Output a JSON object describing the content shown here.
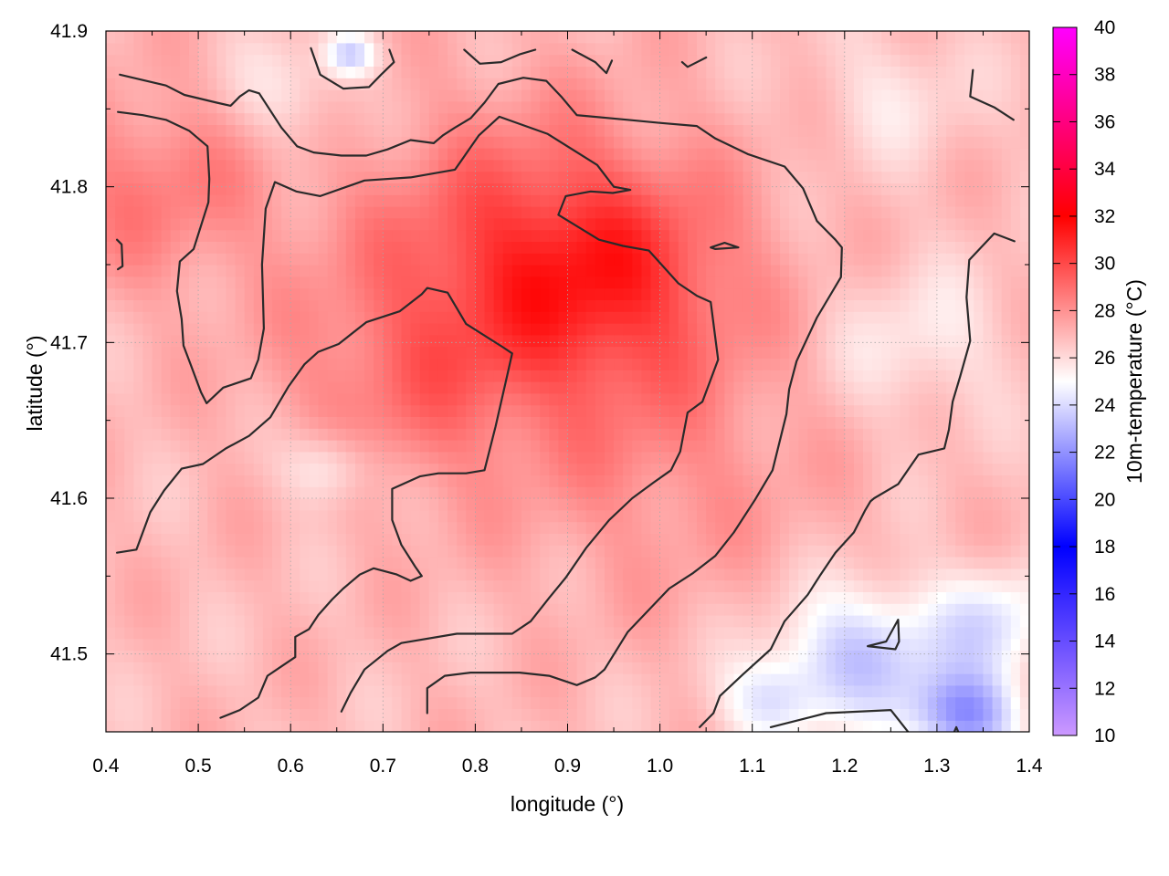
{
  "chart_data": {
    "type": "heatmap",
    "title": "",
    "xlabel": "longitude (°)",
    "ylabel": "latitude (°)",
    "xlim": [
      0.4,
      1.4
    ],
    "ylim": [
      41.45,
      41.9
    ],
    "x_ticks": [
      "0.4",
      "0.5",
      "0.6",
      "0.7",
      "0.8",
      "0.9",
      "1.0",
      "1.1",
      "1.2",
      "1.3",
      "1.4"
    ],
    "y_ticks": [
      "41.5",
      "41.6",
      "41.7",
      "41.8",
      "41.9"
    ],
    "grid": true,
    "colorbar": {
      "label": "10m-temperature (°C)",
      "range": [
        10,
        40
      ],
      "ticks": [
        "10",
        "12",
        "14",
        "16",
        "18",
        "20",
        "22",
        "24",
        "26",
        "28",
        "30",
        "32",
        "34",
        "36",
        "38",
        "40"
      ],
      "stops": [
        {
          "value": 10,
          "color": "#cc99ff"
        },
        {
          "value": 18,
          "color": "#0000ff"
        },
        {
          "value": 25,
          "color": "#ffffff"
        },
        {
          "value": 32,
          "color": "#ff0000"
        },
        {
          "value": 40,
          "color": "#ff00ff"
        }
      ]
    },
    "field_features": [
      {
        "lon": 0.85,
        "lat": 41.755,
        "temp": 29.6,
        "spread": 0.13
      },
      {
        "lon": 0.95,
        "lat": 41.74,
        "temp": 29.2,
        "spread": 0.1
      },
      {
        "lon": 0.72,
        "lat": 41.67,
        "temp": 28.3,
        "spread": 0.1
      },
      {
        "lon": 0.45,
        "lat": 41.8,
        "temp": 28.6,
        "spread": 0.09
      },
      {
        "lon": 1.0,
        "lat": 41.62,
        "temp": 28.0,
        "spread": 0.12
      },
      {
        "lon": 0.64,
        "lat": 41.62,
        "temp": 24.8,
        "spread": 0.035
      },
      {
        "lon": 0.6,
        "lat": 41.86,
        "temp": 25.6,
        "spread": 0.05
      },
      {
        "lon": 0.665,
        "lat": 41.885,
        "temp": 23.8,
        "spread": 0.02
      },
      {
        "lon": 1.22,
        "lat": 41.5,
        "temp": 23.4,
        "spread": 0.06
      },
      {
        "lon": 1.33,
        "lat": 41.46,
        "temp": 22.0,
        "spread": 0.04
      },
      {
        "lon": 1.36,
        "lat": 41.52,
        "temp": 24.4,
        "spread": 0.05
      },
      {
        "lon": 1.12,
        "lat": 41.47,
        "temp": 24.4,
        "spread": 0.04
      },
      {
        "lon": 1.28,
        "lat": 41.7,
        "temp": 25.6,
        "spread": 0.07
      },
      {
        "lon": 1.25,
        "lat": 41.86,
        "temp": 25.8,
        "spread": 0.06
      }
    ],
    "field_base_temp": 26.9,
    "contours": [
      [
        [
          0.415,
          41.872
        ],
        [
          0.465,
          41.865
        ],
        [
          0.485,
          41.859
        ],
        [
          0.52,
          41.854
        ],
        [
          0.535,
          41.852
        ],
        [
          0.545,
          41.858
        ],
        [
          0.555,
          41.862
        ],
        [
          0.566,
          41.86
        ],
        [
          0.59,
          41.838
        ],
        [
          0.607,
          41.826
        ],
        [
          0.625,
          41.822
        ],
        [
          0.655,
          41.82
        ],
        [
          0.682,
          41.82
        ],
        [
          0.705,
          41.824
        ],
        [
          0.73,
          41.83
        ],
        [
          0.755,
          41.828
        ],
        [
          0.765,
          41.833
        ],
        [
          0.778,
          41.838
        ],
        [
          0.795,
          41.844
        ],
        [
          0.81,
          41.854
        ],
        [
          0.825,
          41.866
        ],
        [
          0.852,
          41.87
        ],
        [
          0.877,
          41.868
        ],
        [
          0.893,
          41.858
        ],
        [
          0.91,
          41.846
        ],
        [
          0.965,
          41.843
        ],
        [
          1.0,
          41.841
        ],
        [
          1.04,
          41.839
        ],
        [
          1.06,
          41.831
        ],
        [
          1.095,
          41.821
        ],
        [
          1.135,
          41.813
        ],
        [
          1.155,
          41.799
        ],
        [
          1.17,
          41.778
        ],
        [
          1.19,
          41.766
        ],
        [
          1.197,
          41.761
        ],
        [
          1.196,
          41.742
        ],
        [
          1.17,
          41.716
        ],
        [
          1.148,
          41.688
        ],
        [
          1.14,
          41.67
        ],
        [
          1.137,
          41.654
        ],
        [
          1.122,
          41.618
        ],
        [
          1.103,
          41.599
        ],
        [
          1.08,
          41.578
        ],
        [
          1.06,
          41.563
        ],
        [
          1.036,
          41.552
        ],
        [
          1.01,
          41.542
        ],
        [
          0.965,
          41.514
        ],
        [
          0.94,
          41.49
        ],
        [
          0.93,
          41.485
        ],
        [
          0.91,
          41.48
        ],
        [
          0.88,
          41.486
        ],
        [
          0.848,
          41.488
        ],
        [
          0.795,
          41.488
        ],
        [
          0.767,
          41.486
        ],
        [
          0.748,
          41.478
        ],
        [
          0.748,
          41.462
        ]
      ],
      [
        [
          0.413,
          41.848
        ],
        [
          0.44,
          41.846
        ],
        [
          0.465,
          41.843
        ],
        [
          0.49,
          41.836
        ],
        [
          0.51,
          41.826
        ],
        [
          0.512,
          41.805
        ],
        [
          0.511,
          41.79
        ],
        [
          0.495,
          41.76
        ],
        [
          0.48,
          41.752
        ],
        [
          0.477,
          41.733
        ],
        [
          0.482,
          41.715
        ],
        [
          0.484,
          41.698
        ],
        [
          0.491,
          41.687
        ],
        [
          0.503,
          41.668
        ],
        [
          0.509,
          41.661
        ],
        [
          0.527,
          41.671
        ],
        [
          0.557,
          41.677
        ],
        [
          0.565,
          41.689
        ],
        [
          0.571,
          41.709
        ],
        [
          0.569,
          41.75
        ],
        [
          0.573,
          41.786
        ],
        [
          0.583,
          41.803
        ],
        [
          0.606,
          41.797
        ],
        [
          0.632,
          41.794
        ],
        [
          0.68,
          41.804
        ],
        [
          0.73,
          41.806
        ],
        [
          0.778,
          41.811
        ],
        [
          0.804,
          41.833
        ],
        [
          0.826,
          41.845
        ],
        [
          0.878,
          41.834
        ],
        [
          0.932,
          41.814
        ],
        [
          0.95,
          41.8
        ],
        [
          0.968,
          41.798
        ],
        [
          0.949,
          41.796
        ],
        [
          0.925,
          41.797
        ],
        [
          0.898,
          41.794
        ],
        [
          0.89,
          41.782
        ],
        [
          0.934,
          41.766
        ],
        [
          0.96,
          41.762
        ],
        [
          0.988,
          41.759
        ],
        [
          1.02,
          41.738
        ],
        [
          1.04,
          41.73
        ],
        [
          1.055,
          41.726
        ],
        [
          1.063,
          41.689
        ],
        [
          1.046,
          41.662
        ],
        [
          1.03,
          41.655
        ],
        [
          1.022,
          41.63
        ],
        [
          1.012,
          41.618
        ],
        [
          0.993,
          41.61
        ],
        [
          0.97,
          41.6
        ],
        [
          0.945,
          41.586
        ],
        [
          0.92,
          41.568
        ],
        [
          0.898,
          41.549
        ],
        [
          0.88,
          41.536
        ],
        [
          0.86,
          41.521
        ],
        [
          0.84,
          41.513
        ],
        [
          0.78,
          41.513
        ],
        [
          0.72,
          41.507
        ],
        [
          0.705,
          41.502
        ],
        [
          0.68,
          41.49
        ],
        [
          0.665,
          41.475
        ],
        [
          0.655,
          41.463
        ]
      ],
      [
        [
          0.412,
          41.565
        ],
        [
          0.433,
          41.567
        ],
        [
          0.448,
          41.591
        ],
        [
          0.463,
          41.605
        ],
        [
          0.482,
          41.619
        ],
        [
          0.505,
          41.622
        ],
        [
          0.53,
          41.632
        ],
        [
          0.555,
          41.64
        ],
        [
          0.578,
          41.652
        ],
        [
          0.598,
          41.672
        ],
        [
          0.615,
          41.686
        ],
        [
          0.63,
          41.694
        ],
        [
          0.652,
          41.699
        ],
        [
          0.682,
          41.713
        ],
        [
          0.718,
          41.72
        ],
        [
          0.742,
          41.731
        ],
        [
          0.748,
          41.735
        ],
        [
          0.77,
          41.732
        ],
        [
          0.79,
          41.712
        ],
        [
          0.83,
          41.697
        ],
        [
          0.84,
          41.693
        ],
        [
          0.835,
          41.68
        ],
        [
          0.822,
          41.646
        ],
        [
          0.81,
          41.618
        ],
        [
          0.79,
          41.616
        ],
        [
          0.76,
          41.616
        ],
        [
          0.74,
          41.614
        ],
        [
          0.71,
          41.606
        ],
        [
          0.71,
          41.586
        ],
        [
          0.72,
          41.57
        ],
        [
          0.735,
          41.556
        ],
        [
          0.742,
          41.55
        ],
        [
          0.73,
          41.547
        ],
        [
          0.715,
          41.551
        ],
        [
          0.69,
          41.555
        ],
        [
          0.675,
          41.551
        ],
        [
          0.657,
          41.542
        ],
        [
          0.645,
          41.535
        ],
        [
          0.63,
          41.525
        ],
        [
          0.62,
          41.516
        ],
        [
          0.605,
          41.511
        ],
        [
          0.605,
          41.498
        ],
        [
          0.59,
          41.492
        ],
        [
          0.575,
          41.486
        ],
        [
          0.565,
          41.472
        ],
        [
          0.545,
          41.464
        ],
        [
          0.524,
          41.459
        ]
      ],
      [
        [
          1.12,
          41.453
        ],
        [
          1.14,
          41.456
        ],
        [
          1.18,
          41.462
        ],
        [
          1.25,
          41.464
        ],
        [
          1.27,
          41.449
        ]
      ],
      [
        [
          1.225,
          41.505
        ],
        [
          1.245,
          41.508
        ],
        [
          1.258,
          41.522
        ],
        [
          1.259,
          41.508
        ],
        [
          1.255,
          41.503
        ],
        [
          1.225,
          41.505
        ]
      ],
      [
        [
          1.055,
          41.761
        ],
        [
          1.07,
          41.764
        ],
        [
          1.085,
          41.761
        ],
        [
          1.06,
          41.76
        ],
        [
          1.055,
          41.761
        ]
      ],
      [
        [
          0.412,
          41.766
        ],
        [
          0.417,
          41.763
        ],
        [
          0.418,
          41.749
        ],
        [
          0.413,
          41.747
        ]
      ],
      [
        [
          0.622,
          41.889
        ],
        [
          0.632,
          41.872
        ],
        [
          0.657,
          41.863
        ],
        [
          0.685,
          41.864
        ],
        [
          0.698,
          41.872
        ],
        [
          0.712,
          41.88
        ],
        [
          0.707,
          41.888
        ]
      ],
      [
        [
          0.788,
          41.888
        ],
        [
          0.805,
          41.879
        ],
        [
          0.828,
          41.88
        ],
        [
          0.848,
          41.885
        ],
        [
          0.865,
          41.888
        ]
      ],
      [
        [
          0.905,
          41.888
        ],
        [
          0.93,
          41.88
        ],
        [
          0.942,
          41.873
        ],
        [
          0.948,
          41.881
        ]
      ],
      [
        [
          1.024,
          41.88
        ],
        [
          1.03,
          41.877
        ],
        [
          1.05,
          41.883
        ]
      ],
      [
        [
          1.339,
          41.875
        ],
        [
          1.336,
          41.858
        ],
        [
          1.362,
          41.851
        ],
        [
          1.383,
          41.843
        ]
      ],
      [
        [
          1.384,
          41.765
        ],
        [
          1.362,
          41.77
        ],
        [
          1.335,
          41.753
        ],
        [
          1.332,
          41.729
        ],
        [
          1.336,
          41.701
        ],
        [
          1.325,
          41.678
        ],
        [
          1.317,
          41.662
        ],
        [
          1.313,
          41.644
        ],
        [
          1.308,
          41.632
        ],
        [
          1.28,
          41.628
        ],
        [
          1.258,
          41.609
        ],
        [
          1.232,
          41.6
        ],
        [
          1.228,
          41.598
        ],
        [
          1.222,
          41.592
        ],
        [
          1.21,
          41.578
        ],
        [
          1.19,
          41.565
        ],
        [
          1.173,
          41.55
        ],
        [
          1.16,
          41.538
        ],
        [
          1.135,
          41.521
        ],
        [
          1.12,
          41.503
        ],
        [
          1.09,
          41.487
        ],
        [
          1.065,
          41.473
        ],
        [
          1.058,
          41.462
        ],
        [
          1.043,
          41.453
        ]
      ],
      [
        [
          1.318,
          41.449
        ],
        [
          1.321,
          41.453
        ],
        [
          1.323,
          41.45
        ]
      ]
    ]
  }
}
